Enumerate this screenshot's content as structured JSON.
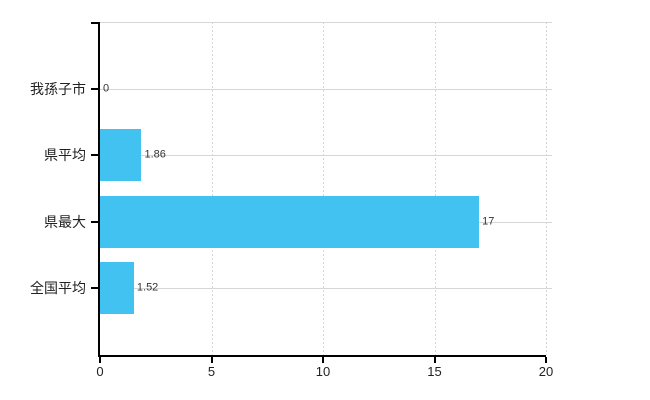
{
  "chart_data": {
    "type": "bar",
    "orientation": "horizontal",
    "title": "",
    "categories": [
      "我孫子市",
      "県平均",
      "県最大",
      "全国平均"
    ],
    "values": [
      0,
      1.86,
      17,
      1.52
    ],
    "value_labels": [
      "0",
      "1.86",
      "17",
      "1.52"
    ],
    "xlim": [
      0,
      20
    ],
    "x_tick_labels": [
      "0",
      "5",
      "10",
      "15",
      "20"
    ],
    "x_tick_values": [
      0,
      5,
      10,
      15,
      20
    ],
    "ylabel": "",
    "xlabel": "",
    "legend_position": "none",
    "grid": {
      "horizontal_style": "solid",
      "vertical_style": "dashed",
      "color": "#D6D6D6",
      "top_border": true
    },
    "colors": {
      "bar_fill": "#41C2F0",
      "axis": "#000000",
      "category_label": "#222222",
      "value_label": "#333333",
      "tick_label": "#222222",
      "background": "#FFFFFF"
    }
  }
}
